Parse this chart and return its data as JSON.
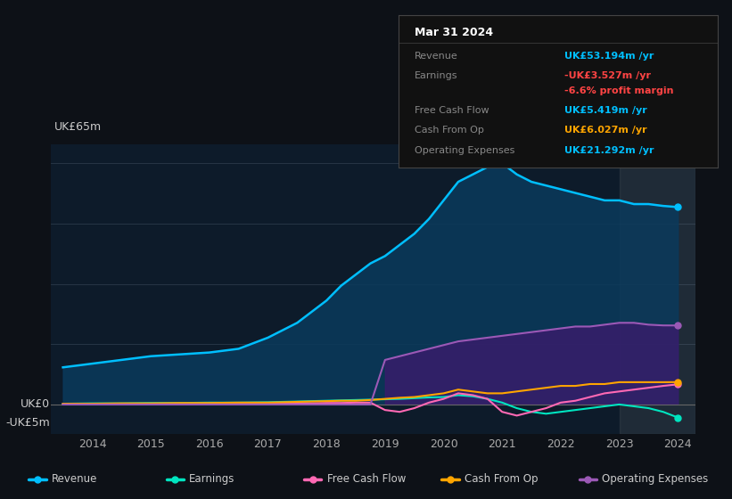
{
  "background_color": "#0d1117",
  "plot_bg_color": "#0d1b2a",
  "ylabel_top": "UK£65m",
  "ylabel_zero": "UK£0",
  "ylabel_neg": "-UK£5m",
  "years": [
    2013.5,
    2014,
    2014.5,
    2015,
    2015.5,
    2016,
    2016.5,
    2017,
    2017.25,
    2017.5,
    2017.75,
    2018,
    2018.25,
    2018.5,
    2018.75,
    2019,
    2019.25,
    2019.5,
    2019.75,
    2020,
    2020.25,
    2020.5,
    2020.75,
    2021,
    2021.25,
    2021.5,
    2021.75,
    2022,
    2022.25,
    2022.5,
    2022.75,
    2023,
    2023.25,
    2023.5,
    2023.75,
    2024
  ],
  "revenue": [
    10,
    11,
    12,
    13,
    13.5,
    14,
    15,
    18,
    20,
    22,
    25,
    28,
    32,
    35,
    38,
    40,
    43,
    46,
    50,
    55,
    60,
    62,
    64,
    65,
    62,
    60,
    59,
    58,
    57,
    56,
    55,
    55,
    54,
    54,
    53.5,
    53.194
  ],
  "earnings": [
    0.2,
    0.3,
    0.3,
    0.4,
    0.4,
    0.5,
    0.5,
    0.6,
    0.7,
    0.8,
    0.9,
    1.0,
    1.1,
    1.2,
    1.3,
    1.4,
    1.5,
    1.7,
    1.9,
    2.0,
    2.5,
    2.2,
    1.5,
    0.5,
    -1.0,
    -2.0,
    -2.5,
    -2.0,
    -1.5,
    -1.0,
    -0.5,
    0.0,
    -0.5,
    -1.0,
    -2.0,
    -3.527
  ],
  "free_cash_flow": [
    0.1,
    0.1,
    0.1,
    0.1,
    0.1,
    0.2,
    0.2,
    0.2,
    0.3,
    0.3,
    0.3,
    0.4,
    0.4,
    0.5,
    0.5,
    -1.5,
    -2.0,
    -1.0,
    0.5,
    1.5,
    3.0,
    2.5,
    1.5,
    -2.0,
    -3.0,
    -2.0,
    -1.0,
    0.5,
    1.0,
    2.0,
    3.0,
    3.5,
    4.0,
    4.5,
    5.0,
    5.419
  ],
  "cash_from_op": [
    0.2,
    0.2,
    0.3,
    0.3,
    0.4,
    0.4,
    0.5,
    0.5,
    0.6,
    0.7,
    0.8,
    0.9,
    1.0,
    1.0,
    1.2,
    1.5,
    1.8,
    2.0,
    2.5,
    3.0,
    4.0,
    3.5,
    3.0,
    3.0,
    3.5,
    4.0,
    4.5,
    5.0,
    5.0,
    5.5,
    5.5,
    6.0,
    6.0,
    6.0,
    6.0,
    6.027
  ],
  "operating_expenses": [
    0,
    0,
    0,
    0,
    0,
    0,
    0,
    0,
    0,
    0,
    0,
    0,
    0,
    0,
    0,
    12,
    13,
    14,
    15,
    16,
    17,
    17.5,
    18,
    18.5,
    19,
    19.5,
    20,
    20.5,
    21,
    21,
    21.5,
    22,
    22,
    21.5,
    21.3,
    21.292
  ],
  "revenue_color": "#00bfff",
  "earnings_color": "#00e5c0",
  "free_cash_flow_color": "#ff69b4",
  "cash_from_op_color": "#ffa500",
  "operating_expenses_color": "#9b59b6",
  "revenue_fill_color": "#0a3a5c",
  "operating_expenses_fill_color": "#3d1a6e",
  "ylim": [
    -8,
    70
  ],
  "xlim": [
    2013.3,
    2024.3
  ],
  "grid_color": "#2a3a4a",
  "x_ticks": [
    2014,
    2015,
    2016,
    2017,
    2018,
    2019,
    2020,
    2021,
    2022,
    2023,
    2024
  ],
  "legend_labels": [
    "Revenue",
    "Earnings",
    "Free Cash Flow",
    "Cash From Op",
    "Operating Expenses"
  ],
  "legend_colors": [
    "#00bfff",
    "#00e5c0",
    "#ff69b4",
    "#ffa500",
    "#9b59b6"
  ],
  "info_box": {
    "title": "Mar 31 2024",
    "rows": [
      {
        "label": "Revenue",
        "value": "UK£53.194m /yr",
        "value_color": "#00bfff"
      },
      {
        "label": "Earnings",
        "value": "-UK£3.527m /yr",
        "value_color": "#ff4444"
      },
      {
        "label": "",
        "value": "-6.6% profit margin",
        "value_color": "#ff4444"
      },
      {
        "label": "Free Cash Flow",
        "value": "UK£5.419m /yr",
        "value_color": "#00bfff"
      },
      {
        "label": "Cash From Op",
        "value": "UK£6.027m /yr",
        "value_color": "#ffa500"
      },
      {
        "label": "Operating Expenses",
        "value": "UK£21.292m /yr",
        "value_color": "#00bfff"
      }
    ]
  }
}
